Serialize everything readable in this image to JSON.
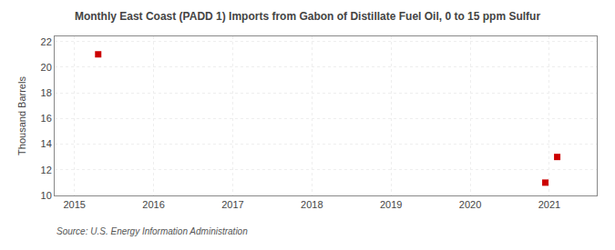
{
  "chart_data": {
    "type": "scatter",
    "title": "Monthly East Coast (PADD 1) Imports from Gabon of Distillate Fuel Oil, 0 to 15 ppm Sulfur",
    "ylabel": "Thousand Barrels",
    "source": "Source: U.S. Energy Information Administration",
    "x": [
      2015.3,
      2020.95,
      2021.1
    ],
    "values": [
      21,
      11,
      13
    ],
    "color": "#cc0000",
    "marker": "square",
    "xlim": [
      2014.75,
      2021.6
    ],
    "ylim": [
      10,
      22.4
    ],
    "xticks": [
      2015,
      2016,
      2017,
      2018,
      2019,
      2020,
      2021
    ],
    "yticks": [
      10,
      12,
      14,
      16,
      18,
      20,
      22
    ],
    "grid": true
  }
}
